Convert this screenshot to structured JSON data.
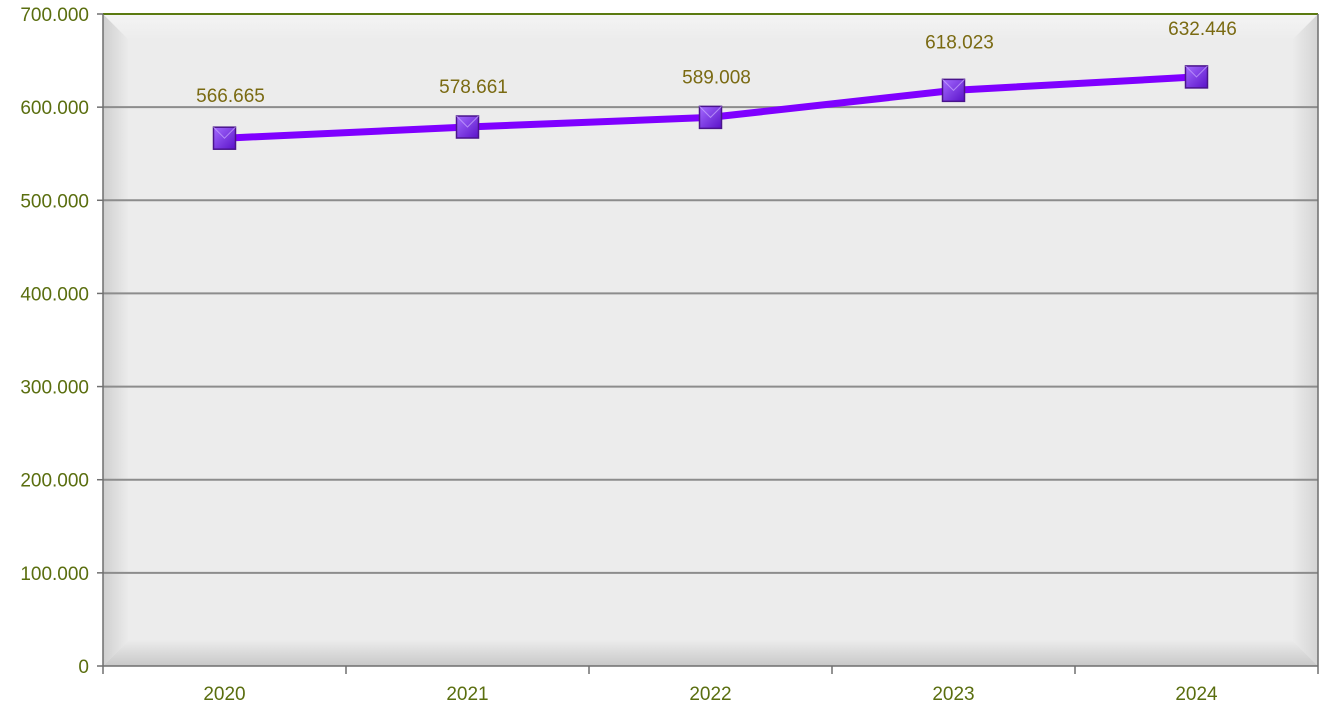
{
  "chart_data": {
    "type": "line",
    "categories": [
      "2020",
      "2021",
      "2022",
      "2023",
      "2024"
    ],
    "series": [
      {
        "values": [
          566665,
          578661,
          589008,
          618023,
          632446
        ],
        "data_labels": [
          "566.665",
          "578.661",
          "589.008",
          "618.023",
          "632.446"
        ],
        "color": "#7f00ff",
        "marker": "square"
      }
    ],
    "y_ticks": [
      0,
      100000,
      200000,
      300000,
      400000,
      500000,
      600000,
      700000
    ],
    "y_tick_labels": [
      "0",
      "100.000",
      "200.000",
      "300.000",
      "400.000",
      "500.000",
      "600.000",
      "700.000"
    ],
    "ylim": [
      0,
      700000
    ],
    "grid": true,
    "legend": "none",
    "colors": {
      "text": "#5a6e0f",
      "data_label": "#7a6a12",
      "gridline": "#8c8c8c",
      "axis": "#6f6f6f",
      "plot_border": "#5b7a10",
      "line": "#7f00ff",
      "marker_fill": "#7b2fe8",
      "marker_edge": "#4a148c"
    }
  }
}
